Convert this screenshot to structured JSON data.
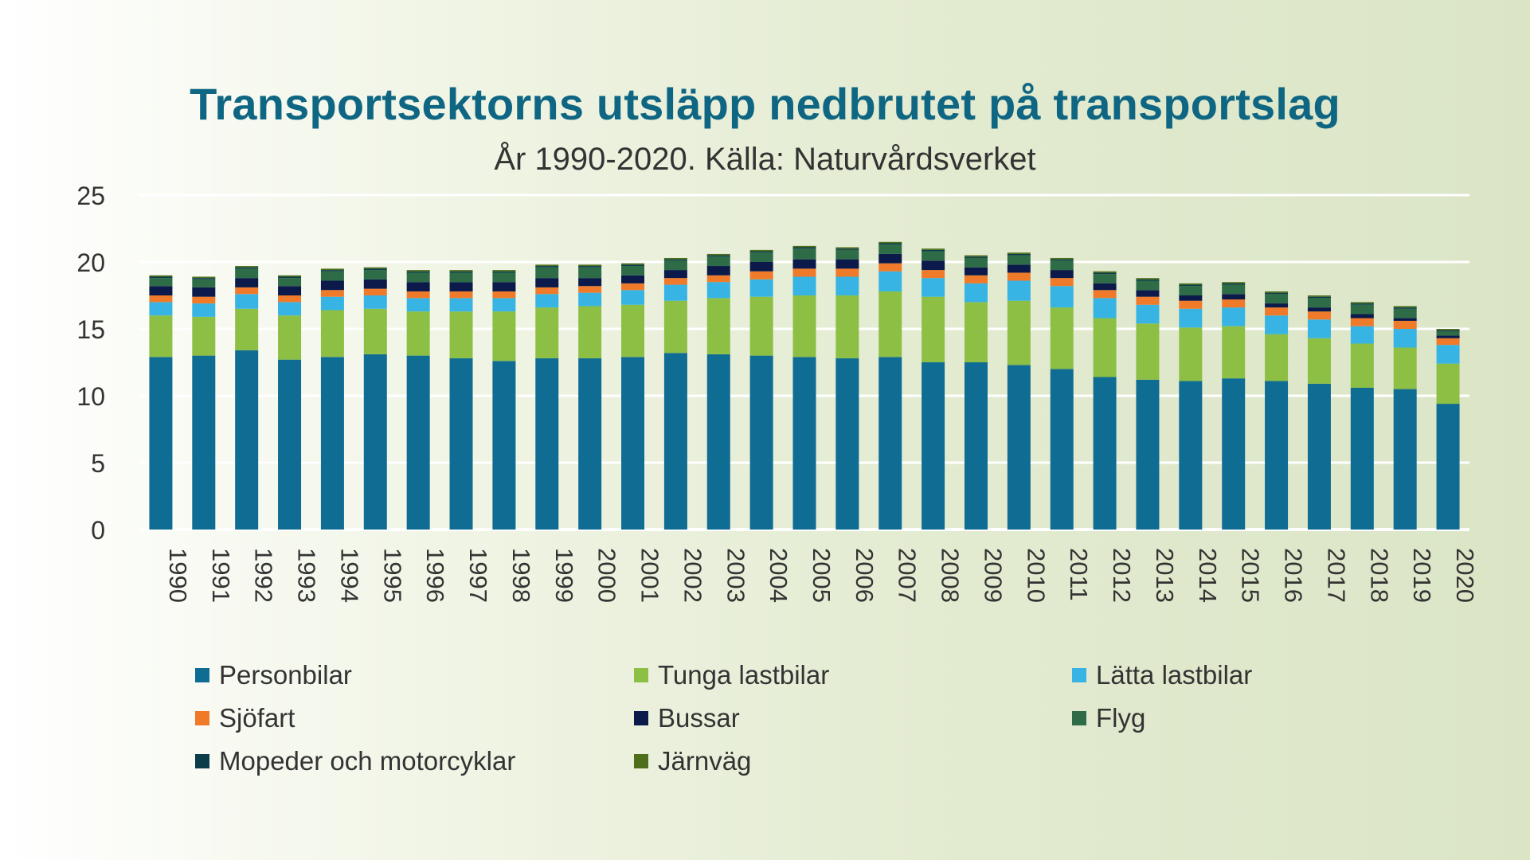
{
  "chart_data": {
    "type": "bar",
    "stacked": true,
    "title": "Transportsektorns utsläpp nedbrutet på transportslag",
    "subtitle": "År 1990-2020. Källa: Naturvårdsverket",
    "xlabel": "",
    "ylabel": "",
    "ylim": [
      0,
      25
    ],
    "yticks": [
      "0",
      "5",
      "10",
      "15",
      "20",
      "25"
    ],
    "grid": true,
    "legend_position": "bottom",
    "categories": [
      "1990",
      "1991",
      "1992",
      "1993",
      "1994",
      "1995",
      "1996",
      "1997",
      "1998",
      "1999",
      "2000",
      "2001",
      "2002",
      "2003",
      "2004",
      "2005",
      "2006",
      "2007",
      "2008",
      "2009",
      "2010",
      "2011",
      "2012",
      "2013",
      "2014",
      "2015",
      "2016",
      "2017",
      "2018",
      "2019",
      "2020"
    ],
    "series": [
      {
        "name": "Personbilar",
        "color": "#0f6c93",
        "values": [
          12.9,
          13.0,
          13.4,
          12.7,
          12.9,
          13.1,
          13.0,
          12.8,
          12.6,
          12.8,
          12.8,
          12.9,
          13.2,
          13.1,
          13.0,
          12.9,
          12.8,
          12.9,
          12.5,
          12.5,
          12.3,
          12.0,
          11.4,
          11.2,
          11.1,
          11.3,
          11.1,
          10.9,
          10.6,
          10.5,
          9.4
        ]
      },
      {
        "name": "Tunga lastbilar",
        "color": "#8dbf45",
        "values": [
          3.1,
          2.9,
          3.1,
          3.3,
          3.5,
          3.4,
          3.3,
          3.5,
          3.7,
          3.8,
          3.9,
          3.9,
          3.9,
          4.2,
          4.4,
          4.6,
          4.7,
          4.9,
          4.9,
          4.5,
          4.8,
          4.6,
          4.4,
          4.2,
          4.0,
          3.9,
          3.5,
          3.4,
          3.3,
          3.1,
          3.0
        ]
      },
      {
        "name": "Lätta lastbilar",
        "color": "#37b4e3",
        "values": [
          1.0,
          1.0,
          1.1,
          1.0,
          1.0,
          1.0,
          1.0,
          1.0,
          1.0,
          1.0,
          1.0,
          1.1,
          1.2,
          1.2,
          1.3,
          1.4,
          1.4,
          1.5,
          1.4,
          1.4,
          1.5,
          1.6,
          1.5,
          1.4,
          1.4,
          1.4,
          1.4,
          1.4,
          1.3,
          1.4,
          1.4
        ]
      },
      {
        "name": "Sjöfart",
        "color": "#ee7a2a",
        "values": [
          0.5,
          0.5,
          0.5,
          0.5,
          0.5,
          0.5,
          0.5,
          0.5,
          0.5,
          0.5,
          0.5,
          0.5,
          0.5,
          0.5,
          0.6,
          0.6,
          0.6,
          0.6,
          0.6,
          0.6,
          0.6,
          0.6,
          0.6,
          0.6,
          0.6,
          0.6,
          0.6,
          0.6,
          0.6,
          0.6,
          0.5
        ]
      },
      {
        "name": "Bussar",
        "color": "#0b1a4a",
        "values": [
          0.7,
          0.7,
          0.7,
          0.7,
          0.7,
          0.7,
          0.7,
          0.7,
          0.7,
          0.7,
          0.6,
          0.6,
          0.6,
          0.7,
          0.7,
          0.7,
          0.7,
          0.7,
          0.7,
          0.6,
          0.6,
          0.6,
          0.5,
          0.5,
          0.4,
          0.4,
          0.3,
          0.3,
          0.3,
          0.2,
          0.2
        ]
      },
      {
        "name": "Flyg",
        "color": "#2e6b47",
        "values": [
          0.6,
          0.6,
          0.7,
          0.6,
          0.7,
          0.7,
          0.7,
          0.7,
          0.7,
          0.8,
          0.8,
          0.7,
          0.7,
          0.7,
          0.7,
          0.8,
          0.7,
          0.7,
          0.7,
          0.7,
          0.7,
          0.7,
          0.7,
          0.7,
          0.7,
          0.7,
          0.7,
          0.7,
          0.7,
          0.7,
          0.3
        ]
      },
      {
        "name": "Mopeder och motorcyklar",
        "color": "#0c3d4a",
        "values": [
          0.1,
          0.1,
          0.1,
          0.1,
          0.1,
          0.1,
          0.1,
          0.1,
          0.1,
          0.1,
          0.1,
          0.1,
          0.1,
          0.1,
          0.1,
          0.1,
          0.1,
          0.1,
          0.1,
          0.1,
          0.1,
          0.1,
          0.1,
          0.1,
          0.1,
          0.1,
          0.1,
          0.1,
          0.1,
          0.1,
          0.1
        ]
      },
      {
        "name": "Järnväg",
        "color": "#4e6e1c",
        "values": [
          0.1,
          0.1,
          0.1,
          0.1,
          0.1,
          0.1,
          0.1,
          0.1,
          0.1,
          0.1,
          0.1,
          0.1,
          0.1,
          0.1,
          0.1,
          0.1,
          0.1,
          0.1,
          0.1,
          0.1,
          0.1,
          0.1,
          0.1,
          0.1,
          0.1,
          0.1,
          0.1,
          0.1,
          0.1,
          0.1,
          0.1
        ]
      }
    ]
  }
}
